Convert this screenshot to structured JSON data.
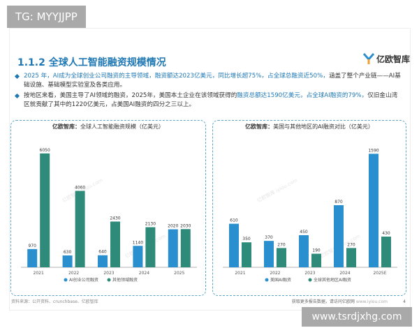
{
  "watermark_top": "TG: MYYJJPP",
  "watermark_bottom": "www.tsrdjxhg.com",
  "slide": {
    "title": "1.1.2 全球人工智能融资规模情况",
    "logo_text": "亿欧智库",
    "bullets": [
      {
        "segments": [
          {
            "text": "2025 年，AI成为全球创业公司融资的主导领域，",
            "hl": true
          },
          {
            "text": "融资额达2023亿美元，同比增长超75%，占全球总融资近50%，",
            "hl": true
          },
          {
            "text": "涵盖了整个产业链——AI基础设施、基础模型实验室及各类应用。",
            "hl": false
          }
        ]
      },
      {
        "segments": [
          {
            "text": "按地区来看，美国主导了AI领域的融资，2025年，美国本土企业在该领域获得的",
            "hl": false
          },
          {
            "text": "融资总额达1590亿美元，占全球AI融资的79%，",
            "hl": true
          },
          {
            "text": "仅旧金山湾区就贡献了其中的1220亿美元，占美国AI融资的四分之三以上。",
            "hl": false
          }
        ]
      }
    ],
    "source": "资料来源：公开资料、crunchbase、亿欧智库",
    "footer_text": "获取更多报告数据，请访问亿欧网",
    "footer_url": "www.iyiou.com",
    "page_number": "4",
    "chart_watermark": "亿欧智库 iyiou.com"
  },
  "colors": {
    "primary": "#1f78b4",
    "bar_ai": "#2a8fcf",
    "bar_other": "#2e8b7a"
  },
  "chart_data": [
    {
      "type": "bar",
      "title_brand": "亿欧智库：",
      "title": "全球人工智能融资规模（亿美元）",
      "categories": [
        "2021",
        "2022",
        "2023",
        "2024",
        "2025"
      ],
      "series": [
        {
          "name": "AI创业公司融资",
          "values": [
            970,
            630,
            640,
            1140,
            2020
          ],
          "color": "#2a8fcf"
        },
        {
          "name": "其他领域融资",
          "values": [
            6050,
            4060,
            2430,
            2130,
            2030
          ],
          "color": "#2e8b7a"
        }
      ],
      "ylim": [
        0,
        6600
      ],
      "legend": "bottom",
      "grid": false
    },
    {
      "type": "bar",
      "title_brand": "亿欧智库：",
      "title": "美国与其他地区的AI融资对比（亿美元）",
      "categories": [
        "2021",
        "2022",
        "2023",
        "2024",
        "2025E"
      ],
      "series": [
        {
          "name": "美国AI融资",
          "values": [
            610,
            370,
            450,
            870,
            1590
          ],
          "color": "#2a8fcf"
        },
        {
          "name": "全球其他地区AI融资",
          "values": [
            350,
            270,
            190,
            270,
            430
          ],
          "color": "#2e8b7a"
        }
      ],
      "ylim": [
        0,
        1740
      ],
      "legend": "bottom",
      "grid": false
    }
  ]
}
